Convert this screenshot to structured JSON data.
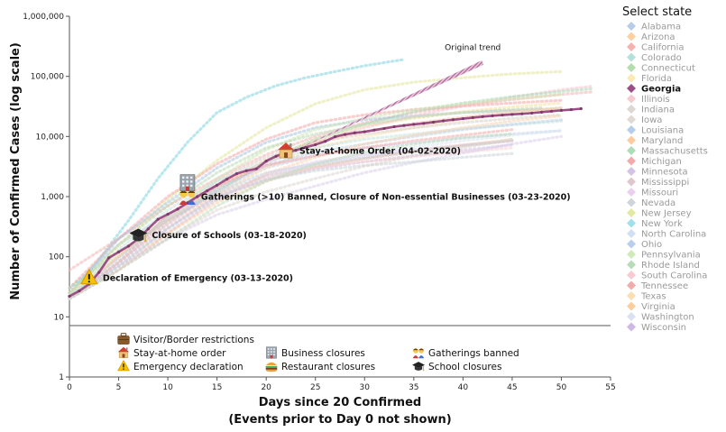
{
  "chart_data": {
    "type": "line",
    "xlabel_line1": "Days since 20 Confirmed",
    "xlabel_line2": "(Events prior to Day 0 not shown)",
    "ylabel": "Number of Confirmed Cases (log scale)",
    "xlim": [
      0,
      55
    ],
    "ylim": [
      1,
      1000000
    ],
    "yscale": "log",
    "x_ticks": [
      0,
      5,
      10,
      15,
      20,
      25,
      30,
      35,
      40,
      45,
      50,
      55
    ],
    "y_ticks": [
      {
        "value": 1,
        "label": "1"
      },
      {
        "value": 10,
        "label": "10"
      },
      {
        "value": 100,
        "label": "100"
      },
      {
        "value": 1000,
        "label": "1,000"
      },
      {
        "value": 10000,
        "label": "10,000"
      },
      {
        "value": 100000,
        "label": "100,000"
      },
      {
        "value": 1000000,
        "label": "1,000,000"
      }
    ],
    "grid": false,
    "selected_state": "Georgia",
    "selected_color": "#9b4f85",
    "selected_series": {
      "name": "Georgia",
      "x": [
        0,
        1,
        2,
        3,
        4,
        5,
        6,
        7,
        8,
        9,
        10,
        11,
        12,
        13,
        14,
        15,
        16,
        17,
        18,
        19,
        20,
        21,
        22,
        23,
        24,
        25,
        26,
        27,
        28,
        29,
        30,
        31,
        32,
        33,
        34,
        35,
        36,
        37,
        38,
        39,
        40,
        41,
        42,
        43,
        44,
        45,
        46,
        47,
        48,
        49,
        50,
        51,
        52
      ],
      "values": [
        22,
        27,
        35,
        55,
        96,
        120,
        150,
        200,
        290,
        420,
        510,
        620,
        790,
        1000,
        1250,
        1550,
        1950,
        2400,
        2700,
        2900,
        3900,
        4700,
        5400,
        5900,
        6600,
        7300,
        8300,
        9900,
        10800,
        11500,
        12000,
        12800,
        13600,
        14500,
        15200,
        15900,
        16500,
        17300,
        18200,
        19000,
        19800,
        20600,
        21400,
        22100,
        22700,
        23300,
        23800,
        24500,
        25400,
        26300,
        27200,
        28000,
        29000
      ]
    },
    "trend": {
      "label": "Original trend",
      "x": [
        22,
        42
      ],
      "values": [
        5000,
        170000
      ]
    },
    "background_series": [
      {
        "name": "New York",
        "color": "#7fd3df",
        "x": [
          0,
          3,
          6,
          9,
          12,
          15,
          18,
          21,
          24,
          27,
          30,
          33,
          34
        ],
        "values": [
          22,
          90,
          400,
          2000,
          8000,
          25000,
          45000,
          70000,
          95000,
          120000,
          150000,
          180000,
          190000
        ]
      },
      {
        "name": "Washington",
        "color": "#c7d3ea",
        "x": [
          0,
          5,
          10,
          15,
          20,
          25,
          30,
          35,
          40,
          45,
          50
        ],
        "values": [
          30,
          160,
          500,
          1300,
          3000,
          4800,
          6500,
          7800,
          9500,
          11000,
          12500
        ]
      },
      {
        "name": "California",
        "color": "#f2b5b5",
        "x": [
          0,
          5,
          10,
          15,
          20,
          25,
          30,
          35,
          40,
          45,
          50,
          53
        ],
        "values": [
          60,
          200,
          700,
          2000,
          5000,
          10000,
          17000,
          25000,
          33000,
          41000,
          50000,
          55000
        ]
      },
      {
        "name": "New Jersey",
        "color": "#e3e69a",
        "x": [
          0,
          5,
          10,
          15,
          20,
          25,
          30,
          35,
          40,
          45,
          50
        ],
        "values": [
          25,
          150,
          900,
          4000,
          14000,
          35000,
          60000,
          80000,
          95000,
          110000,
          120000
        ]
      },
      {
        "name": "Michigan",
        "color": "#f4a6a6",
        "x": [
          0,
          5,
          10,
          15,
          20,
          25,
          30,
          35,
          40,
          45,
          50
        ],
        "values": [
          30,
          200,
          1000,
          3500,
          9000,
          17000,
          23000,
          28000,
          32000,
          36000,
          40000
        ]
      },
      {
        "name": "Louisiana",
        "color": "#a8c4e0",
        "x": [
          0,
          5,
          10,
          15,
          20,
          25,
          30,
          35,
          40,
          45,
          50
        ],
        "values": [
          25,
          200,
          800,
          3000,
          8000,
          14000,
          19000,
          22000,
          25000,
          27000,
          29000
        ]
      },
      {
        "name": "Florida",
        "color": "#f6e0a4",
        "x": [
          0,
          5,
          10,
          15,
          20,
          25,
          30,
          35,
          40,
          45,
          50
        ],
        "values": [
          25,
          110,
          420,
          1400,
          4000,
          9000,
          15000,
          20000,
          26000,
          31000,
          36000
        ]
      },
      {
        "name": "Illinois",
        "color": "#f8c3cc",
        "x": [
          0,
          5,
          10,
          15,
          20,
          25,
          30,
          35,
          40,
          45,
          50,
          53
        ],
        "values": [
          20,
          80,
          350,
          1300,
          3500,
          8000,
          14000,
          22000,
          32000,
          45000,
          60000,
          68000
        ]
      },
      {
        "name": "Massachusetts",
        "color": "#a9d8b8",
        "x": [
          0,
          5,
          10,
          15,
          20,
          25,
          30,
          35,
          40,
          45,
          50,
          53
        ],
        "values": [
          30,
          120,
          400,
          1200,
          3800,
          9000,
          16000,
          26000,
          36000,
          46000,
          56000,
          62000
        ]
      },
      {
        "name": "Pennsylvania",
        "color": "#cfe3b4",
        "x": [
          0,
          5,
          10,
          15,
          20,
          25,
          30,
          35,
          40,
          45,
          50
        ],
        "values": [
          22,
          100,
          480,
          2000,
          6000,
          13000,
          20000,
          28000,
          35000,
          42000,
          50000
        ]
      },
      {
        "name": "Texas",
        "color": "#fde0b2",
        "x": [
          0,
          5,
          10,
          15,
          20,
          25,
          30,
          35,
          40,
          45,
          50
        ],
        "values": [
          20,
          60,
          300,
          1100,
          3000,
          6500,
          10000,
          14000,
          19000,
          24000,
          30000
        ]
      },
      {
        "name": "Connecticut",
        "color": "#b9d9b3",
        "x": [
          0,
          5,
          10,
          15,
          20,
          25,
          30,
          35,
          40,
          45,
          48
        ],
        "values": [
          25,
          160,
          700,
          2500,
          6500,
          11000,
          16000,
          21000,
          25000,
          28000,
          30000
        ]
      },
      {
        "name": "Indiana",
        "color": "#d7cfc8",
        "x": [
          0,
          5,
          10,
          15,
          20,
          25,
          30,
          35,
          40,
          45,
          50
        ],
        "values": [
          22,
          100,
          450,
          1800,
          4500,
          8000,
          11000,
          14000,
          17000,
          20000,
          23000
        ]
      },
      {
        "name": "Maryland",
        "color": "#f9c9a5",
        "x": [
          0,
          5,
          10,
          15,
          20,
          25,
          30,
          35,
          40,
          45,
          50
        ],
        "values": [
          20,
          100,
          400,
          1500,
          4000,
          8000,
          12000,
          16500,
          21000,
          26000,
          30000
        ]
      },
      {
        "name": "Colorado",
        "color": "#c5e3e0",
        "x": [
          0,
          5,
          10,
          15,
          20,
          25,
          30,
          35,
          40,
          45,
          50
        ],
        "values": [
          20,
          130,
          600,
          1800,
          3800,
          6500,
          9000,
          11000,
          13500,
          15500,
          18000
        ]
      },
      {
        "name": "Ohio",
        "color": "#bcd1e8",
        "x": [
          0,
          5,
          10,
          15,
          20,
          25,
          30,
          35,
          40,
          45,
          50
        ],
        "values": [
          20,
          80,
          350,
          1400,
          3300,
          5500,
          7500,
          10000,
          13000,
          16000,
          19000
        ]
      },
      {
        "name": "Virginia",
        "color": "#f9d2b0",
        "x": [
          0,
          5,
          10,
          15,
          20,
          25,
          30,
          35,
          40,
          45,
          50
        ],
        "values": [
          20,
          60,
          250,
          900,
          2400,
          4500,
          7500,
          10500,
          14000,
          18000,
          22000
        ]
      },
      {
        "name": "North Carolina",
        "color": "#dce6f3",
        "x": [
          0,
          5,
          10,
          15,
          20,
          25,
          30,
          35,
          40,
          45,
          50
        ],
        "values": [
          20,
          60,
          280,
          900,
          2000,
          3500,
          5000,
          6700,
          8500,
          10500,
          12500
        ]
      },
      {
        "name": "Tennessee",
        "color": "#f2a9a9",
        "x": [
          0,
          5,
          10,
          15,
          20,
          25,
          30,
          35,
          40,
          45
        ],
        "values": [
          20,
          80,
          500,
          1500,
          3300,
          4800,
          6500,
          8500,
          10500,
          13000
        ]
      },
      {
        "name": "Missouri",
        "color": "#e6cde9",
        "x": [
          0,
          5,
          10,
          15,
          20,
          25,
          30,
          35,
          40,
          45
        ],
        "values": [
          20,
          60,
          250,
          900,
          2300,
          3800,
          5000,
          6000,
          7300,
          8500
        ]
      },
      {
        "name": "Arizona",
        "color": "#f8d0a8",
        "x": [
          0,
          5,
          10,
          15,
          20,
          25,
          30,
          35,
          40,
          45
        ],
        "values": [
          20,
          60,
          240,
          800,
          1800,
          3100,
          4300,
          5700,
          7200,
          9000
        ]
      },
      {
        "name": "Wisconsin",
        "color": "#d2c0e0",
        "x": [
          0,
          5,
          10,
          15,
          20,
          25,
          30,
          35,
          40,
          45
        ],
        "values": [
          20,
          70,
          300,
          1000,
          1900,
          2900,
          3800,
          4800,
          5900,
          7300
        ]
      },
      {
        "name": "Alabama",
        "color": "#c9d3e3",
        "x": [
          0,
          5,
          10,
          15,
          20,
          25,
          30,
          35,
          40,
          45
        ],
        "values": [
          20,
          90,
          450,
          1200,
          2500,
          3500,
          4500,
          5800,
          7000,
          8500
        ]
      },
      {
        "name": "South Carolina",
        "color": "#f8d1d6",
        "x": [
          0,
          5,
          10,
          15,
          20,
          25,
          30,
          35,
          40,
          45
        ],
        "values": [
          20,
          80,
          350,
          1000,
          2000,
          3000,
          3800,
          4600,
          5500,
          6500
        ]
      },
      {
        "name": "Mississippi",
        "color": "#d8c4c9",
        "x": [
          0,
          5,
          10,
          15,
          20,
          25,
          30,
          35,
          40,
          45
        ],
        "values": [
          20,
          80,
          400,
          1100,
          2200,
          3200,
          4300,
          5500,
          7000,
          8500
        ]
      },
      {
        "name": "Minnesota",
        "color": "#d9cde9",
        "x": [
          0,
          5,
          10,
          15,
          20,
          25,
          30,
          35,
          40,
          45,
          50
        ],
        "values": [
          20,
          70,
          200,
          500,
          900,
          1500,
          2500,
          3700,
          5300,
          7500,
          10000
        ]
      },
      {
        "name": "Nevada",
        "color": "#cbd3d9",
        "x": [
          0,
          5,
          10,
          15,
          20,
          25,
          30,
          35,
          40,
          45
        ],
        "values": [
          20,
          70,
          300,
          1000,
          1900,
          2700,
          3300,
          3800,
          4500,
          5200
        ]
      },
      {
        "name": "Rhode Island",
        "color": "#bfdcc0",
        "x": [
          0,
          5,
          10,
          15,
          20,
          25,
          30,
          35,
          40,
          45
        ],
        "values": [
          20,
          60,
          200,
          700,
          1800,
          3500,
          5500,
          7500,
          9500,
          11000
        ]
      },
      {
        "name": "Iowa",
        "color": "#ddd6d0",
        "x": [
          0,
          5,
          10,
          15,
          20,
          25,
          30,
          35,
          40,
          45
        ],
        "values": [
          20,
          60,
          200,
          600,
          1200,
          2000,
          3200,
          4800,
          6500,
          9000
        ]
      }
    ],
    "events": [
      {
        "label": "Declaration of Emergency (03-13-2020)",
        "kind": "emergency",
        "x": 2,
        "y": 45
      },
      {
        "label": "Closure of Schools (03-18-2020)",
        "kind": "school",
        "x": 7,
        "y": 230
      },
      {
        "label": "Gatherings (>10) Banned, Closure of Non-essential Businesses (03-23-2020)",
        "kind": "gatherings",
        "x": 12,
        "y": 1000
      },
      {
        "label": "",
        "kind": "business",
        "x": 12,
        "y": 1700
      },
      {
        "label": "Stay-at-home Order (04-02-2020)",
        "kind": "home",
        "x": 22,
        "y": 5800
      }
    ],
    "event_key": [
      {
        "kind": "border",
        "label": "Visitor/Border restrictions"
      },
      {
        "kind": "home",
        "label": "Stay-at-home order"
      },
      {
        "kind": "business",
        "label": "Business closures"
      },
      {
        "kind": "gatherings",
        "label": "Gatherings banned"
      },
      {
        "kind": "emergency",
        "label": "Emergency declaration"
      },
      {
        "kind": "restaurant",
        "label": "Restaurant closures"
      },
      {
        "kind": "school",
        "label": "School closures"
      }
    ],
    "legend": {
      "title": "Select state",
      "placement": "right",
      "states": [
        {
          "name": "Alabama",
          "color": "#a9c4e6"
        },
        {
          "name": "Arizona",
          "color": "#fbc792"
        },
        {
          "name": "California",
          "color": "#f4a3a3"
        },
        {
          "name": "Colorado",
          "color": "#a8dcd6"
        },
        {
          "name": "Connecticut",
          "color": "#a6d89e"
        },
        {
          "name": "Florida",
          "color": "#fbe6a4"
        },
        {
          "name": "Georgia",
          "color": "#9b4f85"
        },
        {
          "name": "Illinois",
          "color": "#f8bfc8"
        },
        {
          "name": "Indiana",
          "color": "#d8cfc8"
        },
        {
          "name": "Iowa",
          "color": "#dcd3cd"
        },
        {
          "name": "Louisiana",
          "color": "#a5c6e6"
        },
        {
          "name": "Maryland",
          "color": "#fbc28f"
        },
        {
          "name": "Massachusetts",
          "color": "#9fd7a8"
        },
        {
          "name": "Michigan",
          "color": "#f29c9c"
        },
        {
          "name": "Minnesota",
          "color": "#cbb8e3"
        },
        {
          "name": "Mississippi",
          "color": "#d7bfc4"
        },
        {
          "name": "Missouri",
          "color": "#e8c7ec"
        },
        {
          "name": "Nevada",
          "color": "#c6ced5"
        },
        {
          "name": "New Jersey",
          "color": "#dde58f"
        },
        {
          "name": "New York",
          "color": "#8fdbe6"
        },
        {
          "name": "North Carolina",
          "color": "#c8d9ef"
        },
        {
          "name": "Ohio",
          "color": "#aac7e8"
        },
        {
          "name": "Pennsylvania",
          "color": "#c9e6ad"
        },
        {
          "name": "Rhode Island",
          "color": "#a9d7aa"
        },
        {
          "name": "South Carolina",
          "color": "#f6c2c9"
        },
        {
          "name": "Tennessee",
          "color": "#f19b9b"
        },
        {
          "name": "Texas",
          "color": "#fcd8a6"
        },
        {
          "name": "Virginia",
          "color": "#fbc48c"
        },
        {
          "name": "Washington",
          "color": "#d3dcee"
        },
        {
          "name": "Wisconsin",
          "color": "#c3addf"
        }
      ]
    }
  }
}
